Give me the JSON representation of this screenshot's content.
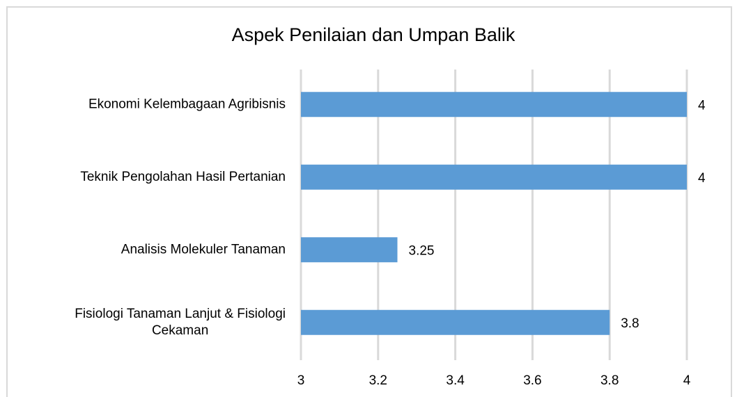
{
  "chart_data": {
    "type": "bar",
    "orientation": "horizontal",
    "title": "Aspek Penilaian dan Umpan Balik",
    "categories": [
      "Ekonomi Kelembagaan Agribisnis",
      "Teknik Pengolahan Hasil Pertanian",
      "Analisis Molekuler Tanaman",
      "Fisiologi Tanaman Lanjut & Fisiologi Cekaman"
    ],
    "values": [
      4,
      4,
      3.25,
      3.8
    ],
    "color": "#5b9bd5",
    "xlim": [
      3,
      4
    ],
    "xticks": [
      3,
      3.2,
      3.4,
      3.6,
      3.8,
      4
    ],
    "grid": true
  }
}
